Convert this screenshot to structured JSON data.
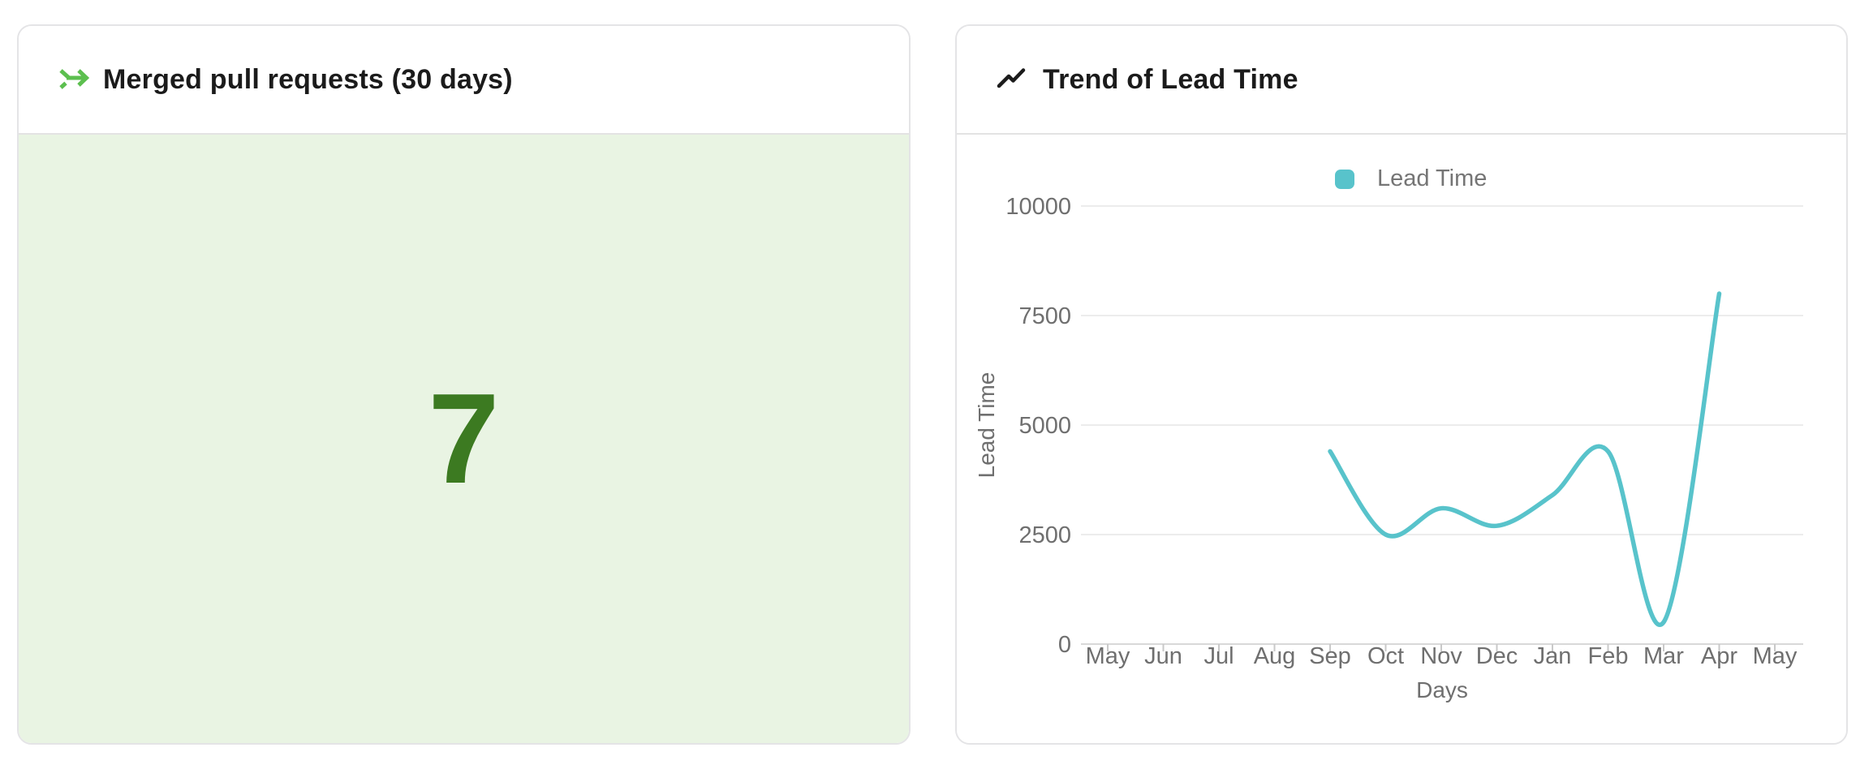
{
  "colors": {
    "accent_green": "#5cbf4f",
    "value_green": "#3c7a21",
    "value_background": "#e9f4e3",
    "series_teal": "#58c3cb",
    "title_text": "#1b1b1b",
    "axis_text": "#6f6f6f",
    "grid_line": "#ececec",
    "axis_line": "#d8d8d8"
  },
  "left_card": {
    "title": "Merged pull requests (30 days)",
    "icon": "merge-arrow-icon",
    "value": "7"
  },
  "right_card": {
    "title": "Trend of Lead Time",
    "icon": "trending-up-icon"
  },
  "chart_data": {
    "type": "line",
    "title": "Trend of Lead Time",
    "legend_position": "top",
    "categories": [
      "May",
      "Jun",
      "Jul",
      "Aug",
      "Sep",
      "Oct",
      "Nov",
      "Dec",
      "Jan",
      "Feb",
      "Mar",
      "Apr",
      "May"
    ],
    "series": [
      {
        "name": "Lead Time",
        "color": "#58c3cb",
        "values": [
          null,
          null,
          null,
          null,
          4400,
          2500,
          3100,
          2700,
          3400,
          4400,
          500,
          8000,
          null
        ]
      }
    ],
    "xlabel": "Days",
    "ylabel": "Lead Time",
    "ylim": [
      0,
      10000
    ],
    "yticks": [
      0,
      2500,
      5000,
      7500,
      10000
    ],
    "grid": true
  }
}
